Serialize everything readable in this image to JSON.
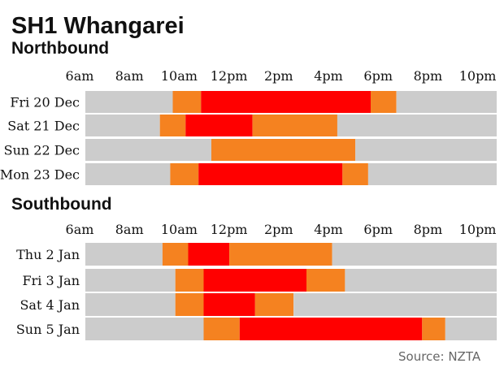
{
  "title": "SH1 Whangarei",
  "source": "Source: NZTA",
  "colors": {
    "background_bar": "#cccccc",
    "orange": "#f58220",
    "red": "#ff0000",
    "text": "#111111",
    "source_text": "#666666"
  },
  "chart_data": [
    {
      "type": "timeline",
      "subtitle": "Northbound",
      "x_unit": "hour of day (24h)",
      "xlim": [
        6,
        22
      ],
      "ticks": [
        {
          "value": 6,
          "label": "6am"
        },
        {
          "value": 8,
          "label": "8am"
        },
        {
          "value": 10,
          "label": "10am"
        },
        {
          "value": 12,
          "label": "12pm"
        },
        {
          "value": 14,
          "label": "2pm"
        },
        {
          "value": 16,
          "label": "4pm"
        },
        {
          "value": 18,
          "label": "6pm"
        },
        {
          "value": 20,
          "label": "8pm"
        },
        {
          "value": 22,
          "label": "10pm"
        }
      ],
      "rows": [
        {
          "label": "Fri 20 Dec",
          "segments": [
            {
              "start": 6,
              "end": 9.4,
              "level": "background_bar"
            },
            {
              "start": 9.4,
              "end": 10.5,
              "level": "orange"
            },
            {
              "start": 10.5,
              "end": 17.1,
              "level": "red"
            },
            {
              "start": 17.1,
              "end": 18.1,
              "level": "orange"
            },
            {
              "start": 18.1,
              "end": 22,
              "level": "background_bar"
            }
          ]
        },
        {
          "label": "Sat 21 Dec",
          "segments": [
            {
              "start": 6,
              "end": 8.9,
              "level": "background_bar"
            },
            {
              "start": 8.9,
              "end": 9.9,
              "level": "orange"
            },
            {
              "start": 9.9,
              "end": 12.5,
              "level": "red"
            },
            {
              "start": 12.5,
              "end": 15.8,
              "level": "orange"
            },
            {
              "start": 15.8,
              "end": 22,
              "level": "background_bar"
            }
          ]
        },
        {
          "label": "Sun 22 Dec",
          "segments": [
            {
              "start": 6,
              "end": 10.9,
              "level": "background_bar"
            },
            {
              "start": 10.9,
              "end": 16.5,
              "level": "orange"
            },
            {
              "start": 16.5,
              "end": 22,
              "level": "background_bar"
            }
          ]
        },
        {
          "label": "Mon 23 Dec",
          "segments": [
            {
              "start": 6,
              "end": 9.3,
              "level": "background_bar"
            },
            {
              "start": 9.3,
              "end": 10.4,
              "level": "orange"
            },
            {
              "start": 10.4,
              "end": 16.0,
              "level": "red"
            },
            {
              "start": 16.0,
              "end": 17.0,
              "level": "orange"
            },
            {
              "start": 17.0,
              "end": 22,
              "level": "background_bar"
            }
          ]
        }
      ]
    },
    {
      "type": "timeline",
      "subtitle": "Southbound",
      "x_unit": "hour of day (24h)",
      "xlim": [
        6,
        22
      ],
      "ticks": [
        {
          "value": 6,
          "label": "6am"
        },
        {
          "value": 8,
          "label": "8am"
        },
        {
          "value": 10,
          "label": "10am"
        },
        {
          "value": 12,
          "label": "12pm"
        },
        {
          "value": 14,
          "label": "2pm"
        },
        {
          "value": 16,
          "label": "4pm"
        },
        {
          "value": 18,
          "label": "6pm"
        },
        {
          "value": 20,
          "label": "8pm"
        },
        {
          "value": 22,
          "label": "10pm"
        }
      ],
      "rows": [
        {
          "label": "Thu  2 Jan",
          "segments": [
            {
              "start": 6,
              "end": 9.0,
              "level": "background_bar"
            },
            {
              "start": 9.0,
              "end": 10.0,
              "level": "orange"
            },
            {
              "start": 10.0,
              "end": 11.6,
              "level": "red"
            },
            {
              "start": 11.6,
              "end": 15.6,
              "level": "orange"
            },
            {
              "start": 15.6,
              "end": 22,
              "level": "background_bar"
            }
          ]
        },
        {
          "label": "Fri 3 Jan",
          "segments": [
            {
              "start": 6,
              "end": 9.5,
              "level": "background_bar"
            },
            {
              "start": 9.5,
              "end": 10.6,
              "level": "orange"
            },
            {
              "start": 10.6,
              "end": 14.6,
              "level": "red"
            },
            {
              "start": 14.6,
              "end": 16.1,
              "level": "orange"
            },
            {
              "start": 16.1,
              "end": 22,
              "level": "background_bar"
            }
          ]
        },
        {
          "label": "Sat 4 Jan",
          "segments": [
            {
              "start": 6,
              "end": 9.5,
              "level": "background_bar"
            },
            {
              "start": 9.5,
              "end": 10.6,
              "level": "orange"
            },
            {
              "start": 10.6,
              "end": 12.6,
              "level": "red"
            },
            {
              "start": 12.6,
              "end": 14.1,
              "level": "orange"
            },
            {
              "start": 14.1,
              "end": 22,
              "level": "background_bar"
            }
          ]
        },
        {
          "label": "Sun 5 Jan",
          "segments": [
            {
              "start": 6,
              "end": 10.6,
              "level": "background_bar"
            },
            {
              "start": 10.6,
              "end": 12.0,
              "level": "orange"
            },
            {
              "start": 12.0,
              "end": 19.1,
              "level": "red"
            },
            {
              "start": 19.1,
              "end": 20.0,
              "level": "orange"
            },
            {
              "start": 20.0,
              "end": 22,
              "level": "background_bar"
            }
          ]
        }
      ]
    }
  ]
}
